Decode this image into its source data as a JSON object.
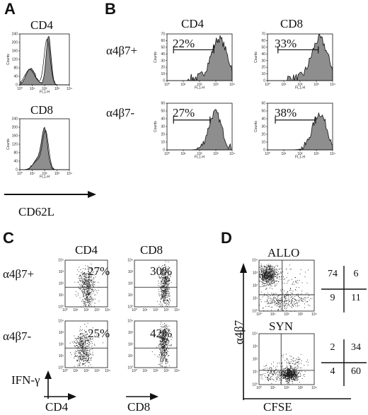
{
  "figure": {
    "panel_a": {
      "letter": "A",
      "plots": [
        {
          "title": "CD4",
          "x_tick_labels": [
            "10⁰",
            "10¹",
            "10²",
            "10³",
            "10⁴"
          ],
          "y_tick_labels": [
            "0",
            "40",
            "80",
            "120",
            "160",
            "200",
            "240"
          ],
          "xlabel": "FL1-H",
          "ylabel": "Counts"
        },
        {
          "title": "CD8",
          "x_tick_labels": [
            "10⁰",
            "10¹",
            "10²",
            "10³",
            "10⁴"
          ],
          "y_tick_labels": [
            "0",
            "40",
            "80",
            "120",
            "160",
            "200",
            "240"
          ],
          "xlabel": "FL1-H",
          "ylabel": "Counts"
        }
      ],
      "axis_label": "CD62L"
    },
    "panel_b": {
      "letter": "B",
      "col_titles": [
        "CD4",
        "CD8"
      ],
      "row_labels": [
        "α4β7+",
        "α4β7-"
      ],
      "percentages": [
        [
          "22%",
          "33%"
        ],
        [
          "27%",
          "38%"
        ]
      ],
      "xlabel": "FL1-H",
      "ylabel": "Counts",
      "x_tick_labels": [
        "10⁰",
        "10¹",
        "10²",
        "10³",
        "10⁴"
      ],
      "y_tick_labels_top": [
        "0",
        "10",
        "20",
        "30",
        "40",
        "50",
        "60",
        "70"
      ],
      "y_tick_labels_bottom": [
        "0",
        "10",
        "20",
        "30",
        "40",
        "50",
        "60"
      ]
    },
    "panel_c": {
      "letter": "C",
      "col_titles": [
        "CD4",
        "CD8"
      ],
      "row_labels": [
        "α4β7+",
        "α4β7-"
      ],
      "percentages": [
        [
          "27%",
          "30%"
        ],
        [
          "25%",
          "42%"
        ]
      ],
      "ylabel": "IFN-γ",
      "xlabels": [
        "CD4",
        "CD8"
      ],
      "tick_labels": [
        "10⁰",
        "10¹",
        "10²",
        "10³",
        "10⁴"
      ]
    },
    "panel_d": {
      "letter": "D",
      "row_labels": [
        "ALLO",
        "SYN"
      ],
      "ylabel": "α4β7",
      "xlabel": "CFSE",
      "tick_labels": [
        "10⁰",
        "10¹",
        "10²",
        "10³",
        "10⁴"
      ],
      "quadrants": [
        {
          "ul": "74",
          "ur": "6",
          "ll": "9",
          "lr": "11"
        },
        {
          "ul": "2",
          "ur": "34",
          "ll": "4",
          "lr": "60"
        }
      ]
    }
  },
  "colors": {
    "fill": "#8e8e8e",
    "ink": "#111111",
    "dots": "#1a1a1a"
  }
}
